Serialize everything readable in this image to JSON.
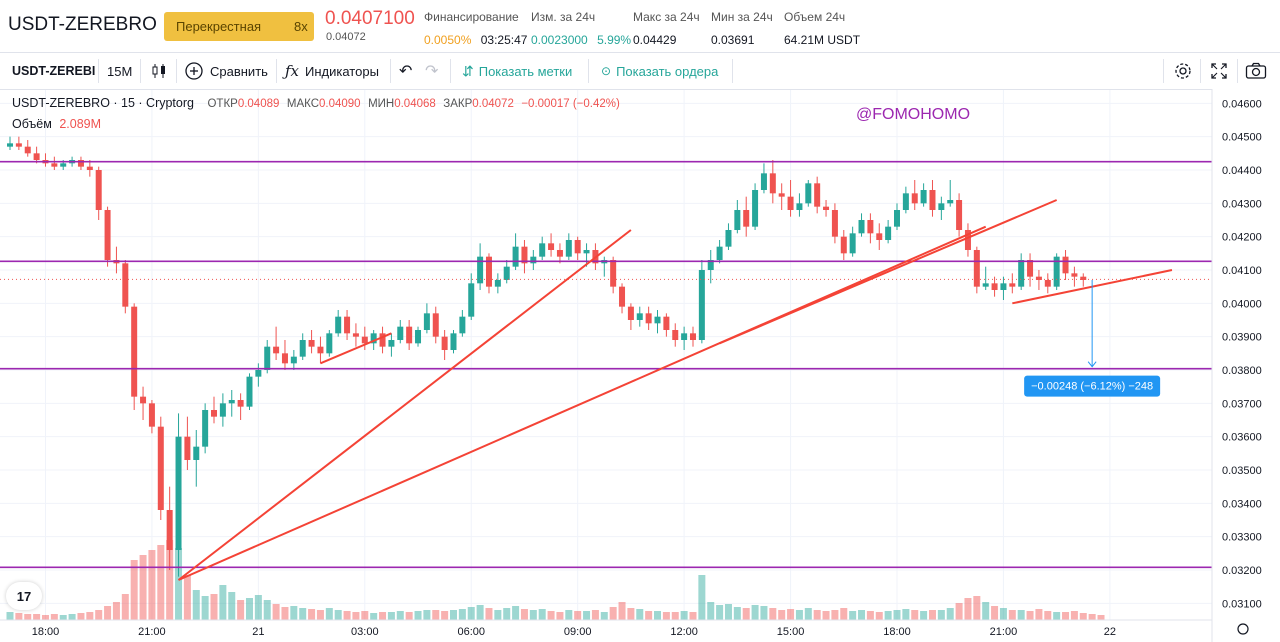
{
  "header": {
    "symbol": "USDT-ZEREBRO",
    "margin_mode": "Перекрестная",
    "leverage": "8x",
    "last_price": "0.0407100",
    "mark_price": "0.04072",
    "funding_label": "Финансирование",
    "funding_rate": "0.0050%",
    "funding_countdown": "03:25:47",
    "change_label": "Изм. за 24ч",
    "change_value": "0.0023000",
    "change_pct": "5.99%",
    "high_label": "Макс за 24ч",
    "high_value": "0.04429",
    "low_label": "Мин за 24ч",
    "low_value": "0.03691",
    "volume_label": "Объем 24ч",
    "volume_value": "64.21M USDT"
  },
  "toolbar": {
    "symbol": "USDT-ZEREBI",
    "interval": "15M",
    "compare": "Сравнить",
    "indicators": "Индикаторы",
    "show_marks": "Показать метки",
    "show_orders": "Показать ордера"
  },
  "legend": {
    "title": "USDT-ZEREBRO · 15 · Cryptorg",
    "open_label": "ОТКР",
    "open": "0.04089",
    "high_label": "МАКС",
    "high": "0.04090",
    "low_label": "МИН",
    "low": "0.04068",
    "close_label": "ЗАКР",
    "close": "0.04072",
    "change": "−0.00017 (−0.42%)",
    "volume_label": "Объём",
    "volume": "2.089M"
  },
  "watermark": "@FOMOHOMO",
  "tv_logo": "17",
  "colors": {
    "up": "#26a69a",
    "down": "#ef5350",
    "level": "#9c27b0",
    "trend": "#f44336",
    "measure": "#2196f3"
  },
  "chart_data": {
    "type": "candlestick",
    "interval": "15m",
    "y_ticks": [
      "0.04600",
      "0.04500",
      "0.04400",
      "0.04300",
      "0.04200",
      "0.04100",
      "0.04000",
      "0.03900",
      "0.03800",
      "0.03700",
      "0.03600",
      "0.03500",
      "0.03400",
      "0.03300",
      "0.03200",
      "0.03100"
    ],
    "ylim": [
      0.0305,
      0.0464
    ],
    "x_ticks": [
      {
        "label": "18:00",
        "i": 4
      },
      {
        "label": "21:00",
        "i": 16
      },
      {
        "label": "21",
        "i": 28
      },
      {
        "label": "03:00",
        "i": 40
      },
      {
        "label": "06:00",
        "i": 52
      },
      {
        "label": "09:00",
        "i": 64
      },
      {
        "label": "12:00",
        "i": 76
      },
      {
        "label": "15:00",
        "i": 88
      },
      {
        "label": "18:00",
        "i": 100
      },
      {
        "label": "21:00",
        "i": 112
      },
      {
        "label": "22",
        "i": 124
      }
    ],
    "levels": [
      {
        "label": "0.04425",
        "value": 0.04425
      },
      {
        "label": "0.04126",
        "value": 0.04126
      },
      {
        "label": "0.03804",
        "value": 0.03804
      },
      {
        "label": "0.03208",
        "value": 0.03208
      }
    ],
    "last_price": {
      "label": "0.04072",
      "value": 0.04072
    },
    "trendlines": [
      {
        "from": [
          19,
          0.0317
        ],
        "to": [
          70,
          0.0422
        ]
      },
      {
        "from": [
          19,
          0.0317
        ],
        "to": [
          110,
          0.0423
        ]
      },
      {
        "from": [
          80,
          0.0388
        ],
        "to": [
          118,
          0.0431
        ]
      },
      {
        "from": [
          35,
          0.0382
        ],
        "to": [
          43,
          0.0391
        ]
      },
      {
        "from": [
          113,
          0.04
        ],
        "to": [
          131,
          0.041
        ]
      }
    ],
    "measure": {
      "from": [
        122,
        0.0407
      ],
      "to": [
        122,
        0.0381
      ],
      "label": "−0.00248 (−6.12%) −248"
    },
    "ohlc": [
      [
        0.0447,
        0.045,
        0.0446,
        0.0448
      ],
      [
        0.0448,
        0.045,
        0.0446,
        0.0447
      ],
      [
        0.0447,
        0.0449,
        0.0444,
        0.0445
      ],
      [
        0.0445,
        0.0447,
        0.0442,
        0.0443
      ],
      [
        0.0443,
        0.0445,
        0.0441,
        0.0442
      ],
      [
        0.0442,
        0.0444,
        0.044,
        0.0441
      ],
      [
        0.0441,
        0.0443,
        0.044,
        0.0442
      ],
      [
        0.0442,
        0.0444,
        0.0441,
        0.0443
      ],
      [
        0.0443,
        0.0444,
        0.044,
        0.0441
      ],
      [
        0.0441,
        0.0443,
        0.0438,
        0.044
      ],
      [
        0.044,
        0.0441,
        0.0425,
        0.0428
      ],
      [
        0.0428,
        0.0429,
        0.0411,
        0.0413
      ],
      [
        0.0413,
        0.0417,
        0.0409,
        0.0412
      ],
      [
        0.0412,
        0.0413,
        0.0397,
        0.0399
      ],
      [
        0.0399,
        0.04,
        0.0368,
        0.0372
      ],
      [
        0.0372,
        0.0375,
        0.0365,
        0.037
      ],
      [
        0.037,
        0.0371,
        0.0361,
        0.0363
      ],
      [
        0.0363,
        0.0366,
        0.0335,
        0.0338
      ],
      [
        0.0338,
        0.0345,
        0.032,
        0.0326
      ],
      [
        0.0326,
        0.0367,
        0.0318,
        0.036
      ],
      [
        0.036,
        0.0366,
        0.035,
        0.0353
      ],
      [
        0.0353,
        0.0362,
        0.0345,
        0.0357
      ],
      [
        0.0357,
        0.037,
        0.0355,
        0.0368
      ],
      [
        0.0368,
        0.0372,
        0.0364,
        0.0366
      ],
      [
        0.0366,
        0.0373,
        0.0363,
        0.037
      ],
      [
        0.037,
        0.0374,
        0.0366,
        0.0371
      ],
      [
        0.0371,
        0.0373,
        0.0365,
        0.0369
      ],
      [
        0.0369,
        0.0379,
        0.0368,
        0.0378
      ],
      [
        0.0378,
        0.0382,
        0.0375,
        0.038
      ],
      [
        0.038,
        0.0389,
        0.0379,
        0.0387
      ],
      [
        0.0387,
        0.0393,
        0.0383,
        0.0385
      ],
      [
        0.0385,
        0.0389,
        0.038,
        0.0382
      ],
      [
        0.0382,
        0.0386,
        0.038,
        0.0384
      ],
      [
        0.0384,
        0.0391,
        0.0383,
        0.0389
      ],
      [
        0.0389,
        0.0392,
        0.0385,
        0.0387
      ],
      [
        0.0387,
        0.039,
        0.0382,
        0.0385
      ],
      [
        0.0385,
        0.0392,
        0.0384,
        0.0391
      ],
      [
        0.0391,
        0.0398,
        0.039,
        0.0396
      ],
      [
        0.0396,
        0.0398,
        0.0389,
        0.0391
      ],
      [
        0.0391,
        0.0394,
        0.0387,
        0.039
      ],
      [
        0.039,
        0.0393,
        0.0386,
        0.0388
      ],
      [
        0.0388,
        0.0392,
        0.0386,
        0.0391
      ],
      [
        0.0391,
        0.0393,
        0.0385,
        0.0387
      ],
      [
        0.0387,
        0.0391,
        0.0384,
        0.0389
      ],
      [
        0.0389,
        0.0395,
        0.0388,
        0.0393
      ],
      [
        0.0393,
        0.0395,
        0.0386,
        0.0388
      ],
      [
        0.0388,
        0.0393,
        0.0387,
        0.0392
      ],
      [
        0.0392,
        0.04,
        0.0391,
        0.0397
      ],
      [
        0.0397,
        0.0399,
        0.0388,
        0.039
      ],
      [
        0.039,
        0.0392,
        0.0383,
        0.0386
      ],
      [
        0.0386,
        0.0392,
        0.0385,
        0.0391
      ],
      [
        0.0391,
        0.0398,
        0.039,
        0.0396
      ],
      [
        0.0396,
        0.0409,
        0.0395,
        0.0406
      ],
      [
        0.0406,
        0.0418,
        0.0404,
        0.0414
      ],
      [
        0.0414,
        0.0415,
        0.0403,
        0.0405
      ],
      [
        0.0405,
        0.0409,
        0.0403,
        0.0407
      ],
      [
        0.0407,
        0.0413,
        0.0406,
        0.0411
      ],
      [
        0.0411,
        0.0421,
        0.041,
        0.0417
      ],
      [
        0.0417,
        0.0419,
        0.0409,
        0.0412
      ],
      [
        0.0412,
        0.0416,
        0.041,
        0.0414
      ],
      [
        0.0414,
        0.042,
        0.0413,
        0.0418
      ],
      [
        0.0418,
        0.0421,
        0.0414,
        0.0416
      ],
      [
        0.0416,
        0.0418,
        0.0412,
        0.0414
      ],
      [
        0.0414,
        0.0421,
        0.0413,
        0.0419
      ],
      [
        0.0419,
        0.042,
        0.0413,
        0.0415
      ],
      [
        0.0415,
        0.0418,
        0.0411,
        0.0416
      ],
      [
        0.0416,
        0.0418,
        0.041,
        0.0412
      ],
      [
        0.0412,
        0.0414,
        0.0408,
        0.0413
      ],
      [
        0.0413,
        0.0414,
        0.0403,
        0.0405
      ],
      [
        0.0405,
        0.0406,
        0.0397,
        0.0399
      ],
      [
        0.0399,
        0.04,
        0.0392,
        0.0395
      ],
      [
        0.0395,
        0.0399,
        0.0393,
        0.0397
      ],
      [
        0.0397,
        0.0399,
        0.0392,
        0.0394
      ],
      [
        0.0394,
        0.0398,
        0.0391,
        0.0396
      ],
      [
        0.0396,
        0.0397,
        0.039,
        0.0392
      ],
      [
        0.0392,
        0.0394,
        0.0387,
        0.0389
      ],
      [
        0.0389,
        0.0393,
        0.0386,
        0.0391
      ],
      [
        0.0391,
        0.0393,
        0.0387,
        0.0389
      ],
      [
        0.0389,
        0.0413,
        0.0388,
        0.041
      ],
      [
        0.041,
        0.0416,
        0.0406,
        0.0413
      ],
      [
        0.0413,
        0.0419,
        0.0412,
        0.0417
      ],
      [
        0.0417,
        0.0424,
        0.0416,
        0.0422
      ],
      [
        0.0422,
        0.0431,
        0.0421,
        0.0428
      ],
      [
        0.0428,
        0.0432,
        0.042,
        0.0423
      ],
      [
        0.0423,
        0.0436,
        0.0422,
        0.0434
      ],
      [
        0.0434,
        0.0442,
        0.0433,
        0.0439
      ],
      [
        0.0439,
        0.0443,
        0.043,
        0.0433
      ],
      [
        0.0433,
        0.0436,
        0.0428,
        0.0432
      ],
      [
        0.0432,
        0.0437,
        0.0426,
        0.0428
      ],
      [
        0.0428,
        0.0433,
        0.0426,
        0.043
      ],
      [
        0.043,
        0.0437,
        0.0429,
        0.0436
      ],
      [
        0.0436,
        0.0438,
        0.0427,
        0.0429
      ],
      [
        0.0429,
        0.0431,
        0.0426,
        0.0428
      ],
      [
        0.0428,
        0.043,
        0.0418,
        0.042
      ],
      [
        0.042,
        0.0422,
        0.0413,
        0.0415
      ],
      [
        0.0415,
        0.0423,
        0.0414,
        0.0421
      ],
      [
        0.0421,
        0.0427,
        0.042,
        0.0425
      ],
      [
        0.0425,
        0.0427,
        0.0418,
        0.0421
      ],
      [
        0.0421,
        0.0424,
        0.0416,
        0.0419
      ],
      [
        0.0419,
        0.0425,
        0.0418,
        0.0423
      ],
      [
        0.0423,
        0.043,
        0.0422,
        0.0428
      ],
      [
        0.0428,
        0.0435,
        0.0427,
        0.0433
      ],
      [
        0.0433,
        0.0437,
        0.0428,
        0.043
      ],
      [
        0.043,
        0.0436,
        0.0429,
        0.0434
      ],
      [
        0.0434,
        0.0437,
        0.0426,
        0.0428
      ],
      [
        0.0428,
        0.0432,
        0.0425,
        0.043
      ],
      [
        0.043,
        0.0437,
        0.0429,
        0.0431
      ],
      [
        0.0431,
        0.0433,
        0.042,
        0.0422
      ],
      [
        0.0422,
        0.0424,
        0.0414,
        0.0416
      ],
      [
        0.0416,
        0.0417,
        0.0403,
        0.0405
      ],
      [
        0.0405,
        0.0411,
        0.0404,
        0.0406
      ],
      [
        0.0406,
        0.0408,
        0.0402,
        0.0404
      ],
      [
        0.0404,
        0.0408,
        0.0401,
        0.0406
      ],
      [
        0.0406,
        0.0409,
        0.0403,
        0.0405
      ],
      [
        0.0405,
        0.0415,
        0.0404,
        0.0413
      ],
      [
        0.0413,
        0.0415,
        0.0405,
        0.0408
      ],
      [
        0.0408,
        0.041,
        0.0404,
        0.0407
      ],
      [
        0.0407,
        0.0409,
        0.0403,
        0.0405
      ],
      [
        0.0405,
        0.0415,
        0.0404,
        0.0414
      ],
      [
        0.0414,
        0.0416,
        0.0407,
        0.0409
      ],
      [
        0.0409,
        0.0411,
        0.0405,
        0.0408
      ],
      [
        0.0408,
        0.0409,
        0.0405,
        0.0407
      ]
    ],
    "volume": [
      0.8,
      0.7,
      0.6,
      0.6,
      0.5,
      0.6,
      0.5,
      0.6,
      0.7,
      0.8,
      1.0,
      1.4,
      1.8,
      2.6,
      6.0,
      6.5,
      7.0,
      7.5,
      8.0,
      7.2,
      4.5,
      3.0,
      2.4,
      2.6,
      3.5,
      2.8,
      2.0,
      2.2,
      2.5,
      2.0,
      1.6,
      1.3,
      1.4,
      1.2,
      1.1,
      1.0,
      1.2,
      1.0,
      0.9,
      0.8,
      0.9,
      0.7,
      0.8,
      0.8,
      0.9,
      0.8,
      0.9,
      1.0,
      1.0,
      0.9,
      1.0,
      1.1,
      1.3,
      1.5,
      1.2,
      1.0,
      1.2,
      1.4,
      1.1,
      1.0,
      1.1,
      0.9,
      0.8,
      1.0,
      0.9,
      0.9,
      1.0,
      0.8,
      1.3,
      1.8,
      1.2,
      1.1,
      0.9,
      0.9,
      0.8,
      0.8,
      0.9,
      0.8,
      4.5,
      1.8,
      1.5,
      1.6,
      1.3,
      1.2,
      1.5,
      1.4,
      1.2,
      1.0,
      1.1,
      1.0,
      1.2,
      1.0,
      0.9,
      1.0,
      1.2,
      0.9,
      1.0,
      0.9,
      0.8,
      0.9,
      1.0,
      1.1,
      1.0,
      0.9,
      1.0,
      1.0,
      1.2,
      1.7,
      2.2,
      2.4,
      1.8,
      1.4,
      1.2,
      1.0,
      1.0,
      0.9,
      1.1,
      0.9,
      0.8,
      0.8,
      0.9,
      0.7,
      0.6,
      0.5
    ]
  }
}
